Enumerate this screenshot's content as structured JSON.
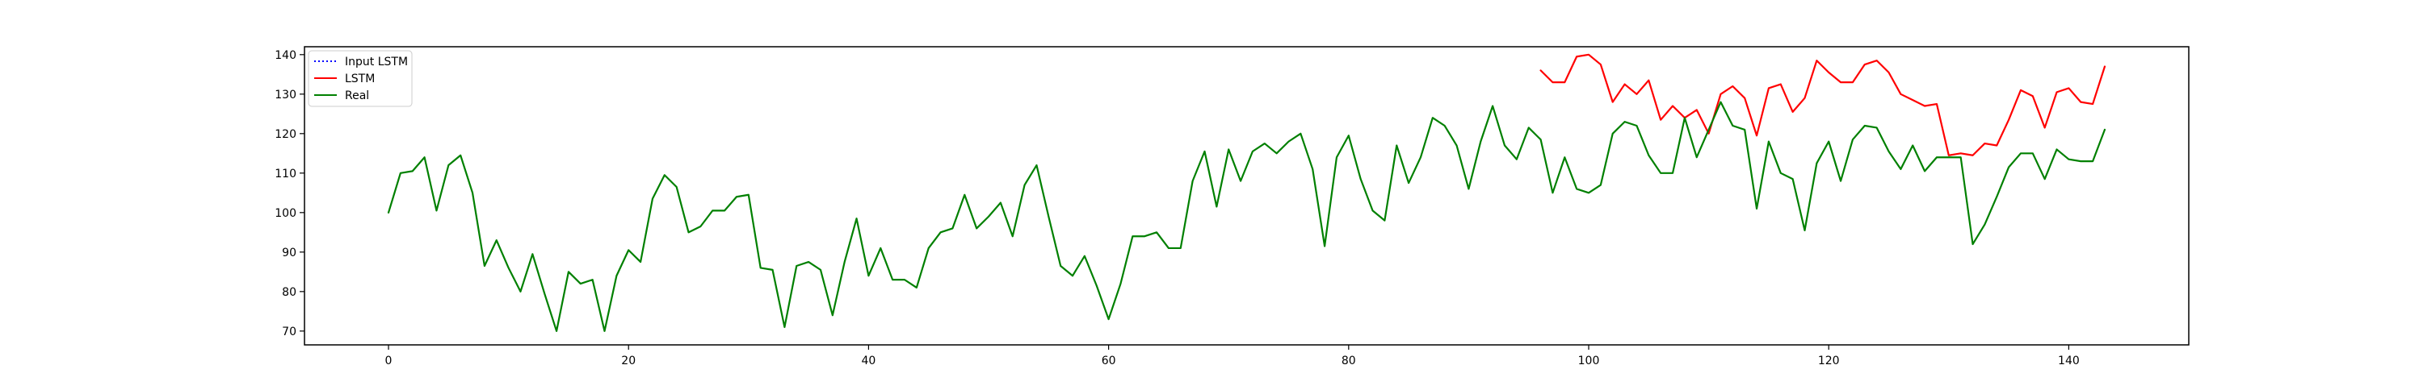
{
  "chart_data": {
    "type": "line",
    "title": "",
    "xlabel": "",
    "ylabel": "",
    "xlim": [
      -7,
      150
    ],
    "ylim": [
      66.5,
      142
    ],
    "xticks": [
      0,
      20,
      40,
      60,
      80,
      100,
      120,
      140
    ],
    "yticks": [
      70,
      80,
      90,
      100,
      110,
      120,
      130,
      140
    ],
    "legend_position": "top-left",
    "grid": false,
    "series": [
      {
        "name": "Input LSTM",
        "color": "#0000ff",
        "style": "dotted",
        "x": [],
        "values": []
      },
      {
        "name": "LSTM",
        "color": "#ff0000",
        "style": "solid",
        "x": [
          96,
          97,
          98,
          99,
          100,
          101,
          102,
          103,
          104,
          105,
          106,
          107,
          108,
          109,
          110,
          111,
          112,
          113,
          114,
          115,
          116,
          117,
          118,
          119,
          120,
          121,
          122,
          123,
          124,
          125,
          126,
          127,
          128,
          129,
          130,
          131,
          132,
          133,
          134,
          135,
          136,
          137,
          138,
          139,
          140,
          141,
          142,
          143
        ],
        "values": [
          136,
          133,
          133,
          139.5,
          140,
          137.5,
          128,
          132.5,
          130,
          133.5,
          123.5,
          127,
          124,
          126,
          120,
          130,
          132,
          129,
          119.5,
          131.5,
          132.5,
          125.5,
          129,
          138.5,
          135.5,
          133,
          133,
          137.5,
          138.5,
          135.5,
          130,
          128.5,
          127,
          127.5,
          114.5,
          115,
          114.5,
          117.5,
          117,
          123.5,
          131,
          129.5,
          121.5,
          130.5,
          131.5,
          128,
          127.5,
          137
        ]
      },
      {
        "name": "Real",
        "color": "#008000",
        "style": "solid",
        "x": [
          0,
          1,
          2,
          3,
          4,
          5,
          6,
          7,
          8,
          9,
          10,
          11,
          12,
          13,
          14,
          15,
          16,
          17,
          18,
          19,
          20,
          21,
          22,
          23,
          24,
          25,
          26,
          27,
          28,
          29,
          30,
          31,
          32,
          33,
          34,
          35,
          36,
          37,
          38,
          39,
          40,
          41,
          42,
          43,
          44,
          45,
          46,
          47,
          48,
          49,
          50,
          51,
          52,
          53,
          54,
          55,
          56,
          57,
          58,
          59,
          60,
          61,
          62,
          63,
          64,
          65,
          66,
          67,
          68,
          69,
          70,
          71,
          72,
          73,
          74,
          75,
          76,
          77,
          78,
          79,
          80,
          81,
          82,
          83,
          84,
          85,
          86,
          87,
          88,
          89,
          90,
          91,
          92,
          93,
          94,
          95,
          96,
          97,
          98,
          99,
          100,
          101,
          102,
          103,
          104,
          105,
          106,
          107,
          108,
          109,
          110,
          111,
          112,
          113,
          114,
          115,
          116,
          117,
          118,
          119,
          120,
          121,
          122,
          123,
          124,
          125,
          126,
          127,
          128,
          129,
          130,
          131,
          132,
          133,
          134,
          135,
          136,
          137,
          138,
          139,
          140,
          141,
          142,
          143
        ],
        "values": [
          100,
          110,
          110.5,
          114,
          100.5,
          112,
          114.5,
          105,
          86.5,
          93,
          86,
          80,
          89.5,
          79.5,
          70,
          85,
          82,
          83,
          70,
          84,
          90.5,
          87.5,
          103.5,
          109.5,
          106.5,
          95,
          96.5,
          100.5,
          100.5,
          104,
          104.5,
          86,
          85.5,
          71,
          86.5,
          87.5,
          85.5,
          74,
          87.5,
          98.5,
          84,
          91,
          83,
          83,
          81,
          91,
          95,
          96,
          104.5,
          96,
          99,
          102.5,
          94,
          107,
          112,
          99,
          86.5,
          84,
          89,
          81.5,
          73,
          82,
          94,
          94,
          95,
          91,
          91,
          108,
          115.5,
          101.5,
          116,
          108,
          115.5,
          117.5,
          115,
          118,
          120,
          111,
          91.5,
          114,
          119.5,
          108.5,
          100.5,
          98,
          117,
          107.5,
          114,
          124,
          122,
          117,
          106,
          118,
          127,
          117,
          113.5,
          121.5,
          118.5,
          105,
          114,
          106,
          105,
          107,
          120,
          123,
          122,
          114.5,
          110,
          110,
          124,
          114,
          121,
          128,
          122,
          121,
          101,
          118,
          110,
          108.5,
          95.5,
          112.5,
          118,
          108,
          118.5,
          122,
          121.5,
          115.5,
          111,
          117,
          110.5,
          114,
          114,
          114,
          92,
          97,
          104,
          111.5,
          115,
          115,
          108.5,
          116,
          113.5,
          113,
          113,
          121
        ]
      }
    ]
  }
}
